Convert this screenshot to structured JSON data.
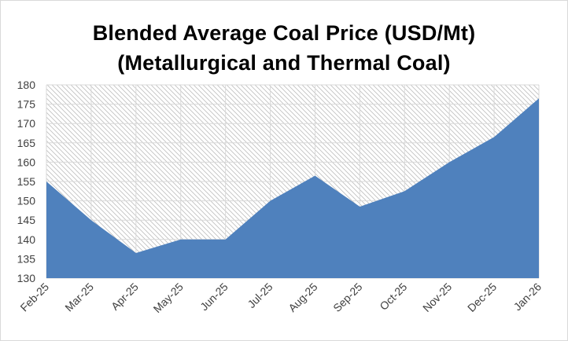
{
  "chart_data": {
    "type": "area",
    "title": "Blended Average Coal Price (USD/Mt)",
    "subtitle": "(Metallurgical and Thermal Coal)",
    "categories": [
      "Feb-25",
      "Mar-25",
      "Apr-25",
      "May-25",
      "Jun-25",
      "Jul-25",
      "Aug-25",
      "Sep-25",
      "Oct-25",
      "Nov-25",
      "Dec-25",
      "Jan-26"
    ],
    "series": [
      {
        "values": [
          155,
          145,
          136.5,
          140,
          140,
          150,
          156.5,
          148.5,
          152.5,
          160,
          166.5,
          176.5
        ]
      }
    ],
    "ylim": [
      130,
      180
    ],
    "yticks": [
      130,
      135,
      140,
      145,
      150,
      155,
      160,
      165,
      170,
      175,
      180
    ],
    "grid": true,
    "legend": "none",
    "colors": {
      "area_fill": "#4f81bd",
      "plot_background_hatch": "#bfbfbf",
      "grid": "#d9d9d9"
    }
  }
}
